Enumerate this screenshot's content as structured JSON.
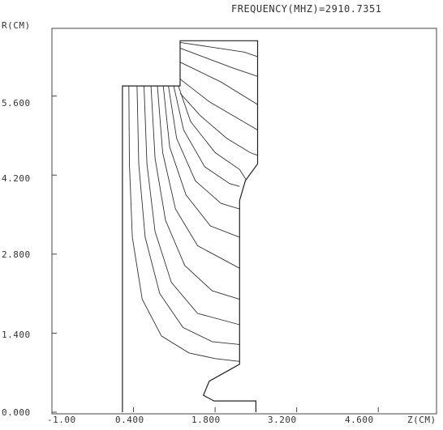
{
  "header": {
    "title": "FREQUENCY(MHZ)=2910.7351"
  },
  "axes": {
    "r_label": "R(CM)",
    "z_label": "Z(CM)",
    "y_ticks": [
      "0.000",
      "1.400",
      "2.800",
      "4.200",
      "5.600"
    ],
    "x_ticks": [
      "-1.00",
      "0.400",
      "1.800",
      "3.200",
      "4.600"
    ]
  },
  "chart_data": {
    "type": "line",
    "title": "FREQUENCY(MHZ)=2910.7351",
    "xlabel": "Z(CM)",
    "ylabel": "R(CM)",
    "xlim": [
      -1.0,
      5.6
    ],
    "ylim": [
      0.0,
      6.8
    ],
    "x_tick_labels": [
      "-1.00",
      "0.400",
      "1.800",
      "3.200",
      "4.600"
    ],
    "y_tick_labels": [
      "0.000",
      "1.400",
      "2.800",
      "4.200",
      "5.600"
    ],
    "series": [
      {
        "role": "cavity-boundary",
        "points": [
          [
            0.21,
            0.0
          ],
          [
            0.21,
            5.78
          ],
          [
            1.2,
            5.78
          ],
          [
            1.2,
            6.58
          ],
          [
            2.53,
            6.58
          ],
          [
            2.53,
            4.4
          ],
          [
            2.32,
            4.1
          ],
          [
            2.22,
            3.75
          ],
          [
            2.22,
            0.85
          ],
          [
            2.05,
            0.75
          ],
          [
            1.7,
            0.55
          ],
          [
            1.6,
            0.3
          ],
          [
            1.78,
            0.2
          ],
          [
            2.5,
            0.2
          ],
          [
            2.5,
            0.0
          ]
        ]
      },
      {
        "role": "field-contours",
        "lines": [
          [
            [
              0.32,
              5.78
            ],
            [
              0.33,
              4.4
            ],
            [
              0.38,
              3.1
            ],
            [
              0.55,
              2.0
            ],
            [
              0.88,
              1.35
            ],
            [
              1.35,
              1.05
            ],
            [
              1.8,
              0.95
            ],
            [
              2.22,
              0.9
            ]
          ],
          [
            [
              0.46,
              5.78
            ],
            [
              0.49,
              4.4
            ],
            [
              0.6,
              3.1
            ],
            [
              0.85,
              2.1
            ],
            [
              1.25,
              1.5
            ],
            [
              1.75,
              1.25
            ],
            [
              2.22,
              1.2
            ]
          ],
          [
            [
              0.58,
              5.78
            ],
            [
              0.63,
              4.4
            ],
            [
              0.77,
              3.2
            ],
            [
              1.05,
              2.3
            ],
            [
              1.5,
              1.75
            ],
            [
              2.22,
              1.55
            ]
          ],
          [
            [
              0.7,
              5.78
            ],
            [
              0.77,
              4.5
            ],
            [
              0.95,
              3.4
            ],
            [
              1.28,
              2.6
            ],
            [
              1.75,
              2.15
            ],
            [
              2.22,
              2.0
            ]
          ],
          [
            [
              0.81,
              5.78
            ],
            [
              0.9,
              4.6
            ],
            [
              1.12,
              3.6
            ],
            [
              1.5,
              2.95
            ],
            [
              2.22,
              2.55
            ]
          ],
          [
            [
              0.91,
              5.78
            ],
            [
              1.02,
              4.7
            ],
            [
              1.3,
              3.85
            ],
            [
              1.72,
              3.3
            ],
            [
              2.22,
              3.1
            ]
          ],
          [
            [
              1.0,
              5.78
            ],
            [
              1.14,
              4.85
            ],
            [
              1.46,
              4.1
            ],
            [
              1.9,
              3.7
            ],
            [
              2.22,
              3.6
            ]
          ],
          [
            [
              1.09,
              5.78
            ],
            [
              1.26,
              5.0
            ],
            [
              1.62,
              4.35
            ],
            [
              2.05,
              4.05
            ],
            [
              2.22,
              4.0
            ]
          ],
          [
            [
              1.17,
              5.78
            ],
            [
              1.38,
              5.15
            ],
            [
              1.8,
              4.6
            ],
            [
              2.22,
              4.3
            ],
            [
              2.33,
              4.12
            ]
          ],
          [
            [
              1.2,
              5.65
            ],
            [
              1.55,
              5.25
            ],
            [
              2.0,
              4.85
            ],
            [
              2.4,
              4.6
            ],
            [
              2.53,
              4.55
            ]
          ],
          [
            [
              1.2,
              5.9
            ],
            [
              1.7,
              5.5
            ],
            [
              2.53,
              5.0
            ]
          ],
          [
            [
              1.2,
              6.2
            ],
            [
              1.9,
              5.85
            ],
            [
              2.53,
              5.45
            ]
          ],
          [
            [
              1.2,
              6.45
            ],
            [
              2.1,
              6.1
            ],
            [
              2.53,
              5.95
            ]
          ],
          [
            [
              1.2,
              6.55
            ],
            [
              2.3,
              6.38
            ],
            [
              2.53,
              6.3
            ]
          ]
        ]
      }
    ]
  }
}
